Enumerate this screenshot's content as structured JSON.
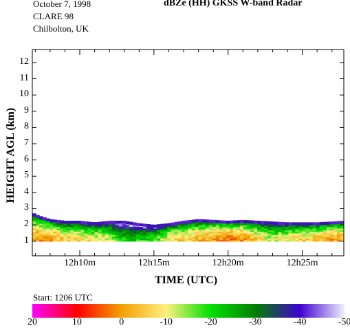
{
  "header": {
    "date": "October  7, 1998",
    "campaign": "CLARE 98",
    "location": "Chilbolton, UK",
    "title": "dBZe (HH)  GKSS  W-band Radar"
  },
  "footer": {
    "start_label": "Start: 1206 UTC"
  },
  "colorbar": {
    "ticks": [
      "20",
      "10",
      "0",
      "-10",
      "-20",
      "-30",
      "-40",
      "-50"
    ],
    "min": -50,
    "max": 20,
    "colors": [
      "#ff00ff",
      "#ff0000",
      "#f2a000",
      "#fff080",
      "#00e000",
      "#008000",
      "#4000d0",
      "#f0f0ff"
    ]
  },
  "chart_data": {
    "type": "heatmap",
    "title": "dBZe (HH)  GKSS  W-band Radar",
    "xlabel": "TIME (UTC)",
    "ylabel": "HEIGHT AGL (km)",
    "x_tick_labels": [
      "12h10m",
      "12h15m",
      "12h20m",
      "12h25m"
    ],
    "x_ticks_min": [
      10,
      15,
      20,
      25
    ],
    "xlim_min": [
      6.8,
      27.8
    ],
    "y_ticks": [
      1,
      2,
      3,
      4,
      5,
      6,
      7,
      8,
      9,
      10,
      11,
      12
    ],
    "ylim": [
      0.1,
      12.8
    ],
    "units": "dBZe",
    "cloud_base_km": 1.0,
    "cloud_top_km": [
      [
        6.8,
        2.7
      ],
      [
        7.3,
        2.5
      ],
      [
        8.0,
        2.3
      ],
      [
        9.0,
        2.2
      ],
      [
        10.0,
        2.2
      ],
      [
        11.0,
        2.1
      ],
      [
        12.0,
        2.2
      ],
      [
        13.0,
        2.2
      ],
      [
        14.0,
        2.05
      ],
      [
        15.0,
        1.95
      ],
      [
        16.0,
        2.05
      ],
      [
        17.0,
        2.2
      ],
      [
        18.0,
        2.3
      ],
      [
        19.0,
        2.25
      ],
      [
        20.0,
        2.2
      ],
      [
        21.0,
        2.25
      ],
      [
        22.0,
        2.2
      ],
      [
        23.0,
        2.15
      ],
      [
        24.0,
        2.1
      ],
      [
        25.0,
        2.1
      ],
      [
        26.0,
        2.1
      ],
      [
        27.0,
        2.15
      ],
      [
        27.8,
        2.2
      ]
    ],
    "reflectivity_dbz": [
      [
        6.8,
        0
      ],
      [
        8.0,
        0
      ],
      [
        9.0,
        -5
      ],
      [
        10.0,
        -8
      ],
      [
        11.0,
        -8
      ],
      [
        12.0,
        -12
      ],
      [
        13.0,
        -22
      ],
      [
        14.0,
        -20
      ],
      [
        15.0,
        -18
      ],
      [
        16.0,
        -8
      ],
      [
        17.0,
        -5
      ],
      [
        18.0,
        -3
      ],
      [
        19.0,
        0
      ],
      [
        20.0,
        2
      ],
      [
        21.0,
        0
      ],
      [
        22.0,
        -6
      ],
      [
        23.0,
        -12
      ],
      [
        24.0,
        -8
      ],
      [
        25.0,
        -6
      ],
      [
        26.0,
        -4
      ],
      [
        27.0,
        0
      ],
      [
        27.8,
        -2
      ]
    ]
  }
}
